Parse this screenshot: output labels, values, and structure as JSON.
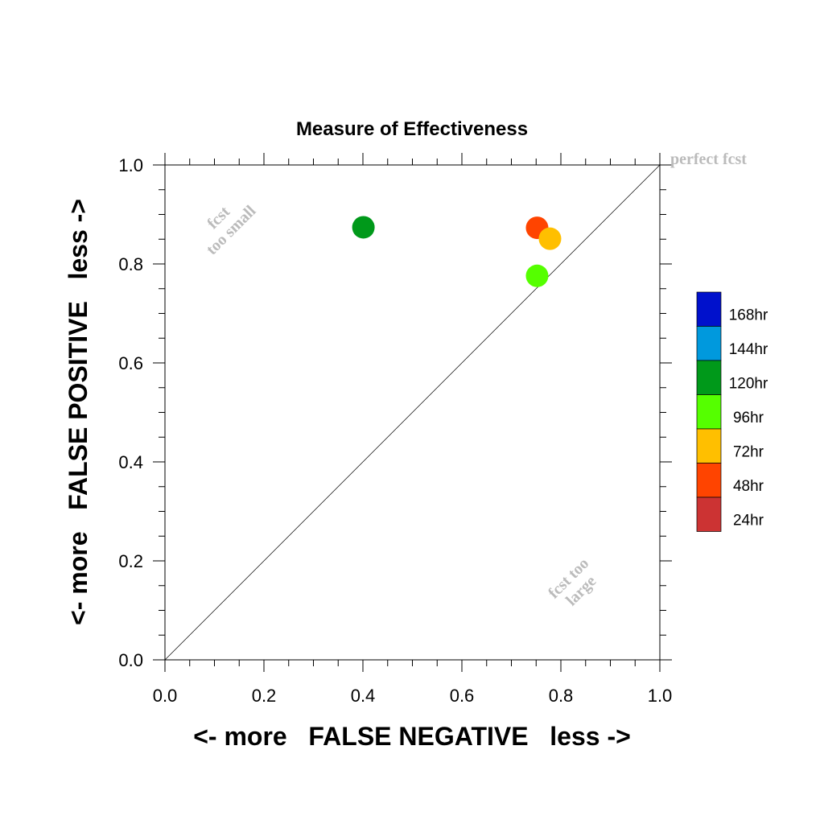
{
  "chart_data": {
    "type": "scatter",
    "title": "Measure of Effectiveness",
    "xlabel": "<- more   FALSE NEGATIVE   less ->",
    "ylabel": "<- more   FALSE POSITIVE   less ->",
    "xlim": [
      0,
      1
    ],
    "ylim": [
      0,
      1
    ],
    "xticks": [
      "0.0",
      "0.2",
      "0.4",
      "0.6",
      "0.8",
      "1.0"
    ],
    "yticks": [
      "0.0",
      "0.2",
      "0.4",
      "0.6",
      "0.8",
      "1.0"
    ],
    "grid": false,
    "reference_line": "diagonal",
    "annotations": {
      "perfect": "perfect fcst",
      "small_line1": "fcst",
      "small_line2": "too small",
      "large_line1": "fcst too",
      "large_line2": "large"
    },
    "legend_position": "right",
    "series": [
      {
        "name": "24hr",
        "color": "#cc3333",
        "points": []
      },
      {
        "name": "48hr",
        "color": "#ff4400",
        "points": [
          [
            0.752,
            0.873
          ]
        ]
      },
      {
        "name": "72hr",
        "color": "#ffbf00",
        "points": [
          [
            0.778,
            0.851
          ]
        ]
      },
      {
        "name": "96hr",
        "color": "#55ff00",
        "points": [
          [
            0.752,
            0.776
          ]
        ]
      },
      {
        "name": "120hr",
        "color": "#00991a",
        "points": [
          [
            0.401,
            0.874
          ]
        ]
      },
      {
        "name": "144hr",
        "color": "#0099dd",
        "points": []
      },
      {
        "name": "168hr",
        "color": "#0011cc",
        "points": []
      }
    ]
  }
}
